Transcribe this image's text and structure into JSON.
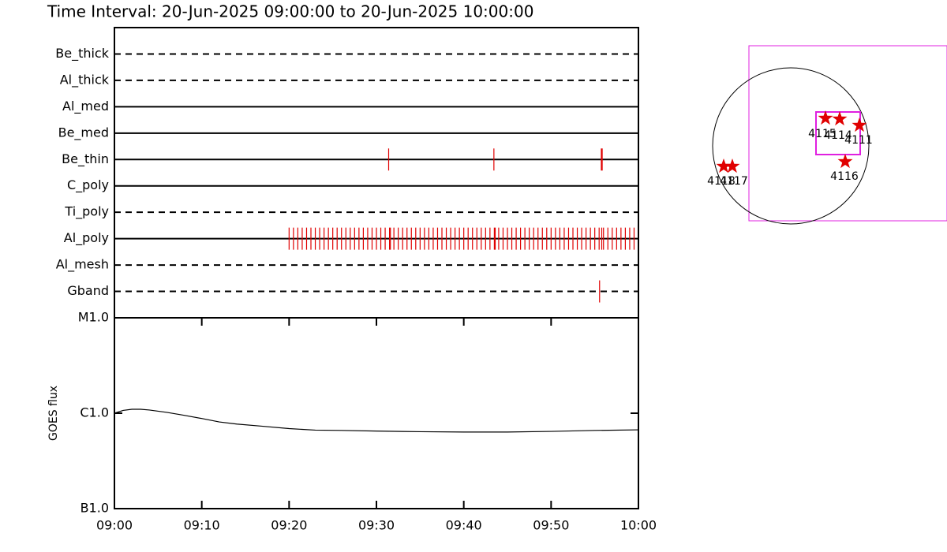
{
  "chart_data": [
    {
      "type": "timeline",
      "title": "Time Interval: 20-Jun-2025 09:00:00 to 20-Jun-2025 10:00:00",
      "xlim": [
        0,
        60
      ],
      "color": "#e00000",
      "rows": [
        {
          "name": "Be_thick",
          "line": "dashed",
          "times": []
        },
        {
          "name": "Al_thick",
          "line": "dashed",
          "times": []
        },
        {
          "name": "Al_med",
          "line": "solid",
          "times": []
        },
        {
          "name": "Be_med",
          "line": "solid",
          "times": []
        },
        {
          "name": "Be_thin",
          "line": "solid",
          "times": [
            31.4,
            43.45,
            55.75,
            55.85
          ]
        },
        {
          "name": "C_poly",
          "line": "solid",
          "times": []
        },
        {
          "name": "Ti_poly",
          "line": "dashed",
          "times": []
        },
        {
          "name": "Al_poly",
          "line": "solid",
          "times": [
            20,
            20.5,
            21,
            21.5,
            22,
            22.5,
            23,
            23.5,
            24,
            24.5,
            25,
            25.5,
            26,
            26.5,
            27,
            27.5,
            28,
            28.5,
            29,
            29.5,
            30,
            30.5,
            31,
            31.5,
            31.6,
            32,
            32.5,
            33,
            33.5,
            34,
            34.5,
            35,
            35.5,
            36,
            36.5,
            37,
            37.5,
            38,
            38.5,
            39,
            39.5,
            40,
            40.5,
            41,
            41.5,
            42,
            42.5,
            43,
            43.5,
            43.6,
            44,
            44.5,
            45,
            45.5,
            46,
            46.5,
            47,
            47.5,
            48,
            48.5,
            49,
            49.5,
            50,
            50.5,
            51,
            51.5,
            52,
            52.5,
            53,
            53.5,
            54,
            54.5,
            55,
            55.5,
            55.8,
            56,
            56.5,
            57,
            57.5,
            58,
            58.5,
            59,
            59.5
          ]
        },
        {
          "name": "Al_mesh",
          "line": "dashed",
          "times": []
        },
        {
          "name": "Gband",
          "line": "dashed",
          "times": [
            55.55
          ]
        }
      ]
    },
    {
      "type": "line",
      "ylabel": "GOES flux",
      "log_scale": true,
      "color": "#000000",
      "xlim": [
        0,
        60
      ],
      "xticks": [
        {
          "value": 0,
          "label": "09:00"
        },
        {
          "value": 10,
          "label": "09:10"
        },
        {
          "value": 20,
          "label": "09:20"
        },
        {
          "value": 30,
          "label": "09:30"
        },
        {
          "value": 40,
          "label": "09:40"
        },
        {
          "value": 50,
          "label": "09:50"
        },
        {
          "value": 60,
          "label": "10:00"
        }
      ],
      "ylim": [
        1e-07,
        1e-05
      ],
      "yticks": [
        {
          "value": 1e-07,
          "label": "B1.0"
        },
        {
          "value": 1e-06,
          "label": "C1.0"
        },
        {
          "value": 1e-05,
          "label": "M1.0"
        }
      ],
      "x": [
        0,
        1,
        2,
        3,
        4,
        6,
        8,
        10,
        12,
        14,
        17,
        20,
        23,
        26,
        30,
        35,
        40,
        45,
        50,
        55,
        60
      ],
      "values": [
        1e-06,
        1.07e-06,
        1.1e-06,
        1.1e-06,
        1.08e-06,
        1.02e-06,
        9.5e-07,
        8.8e-07,
        8.1e-07,
        7.7e-07,
        7.3e-07,
        6.9e-07,
        6.65e-07,
        6.6e-07,
        6.5e-07,
        6.4e-07,
        6.35e-07,
        6.35e-07,
        6.45e-07,
        6.6e-07,
        6.7e-07
      ]
    }
  ],
  "map": {
    "regions": [
      "4115",
      "4114",
      "4111",
      "4116",
      "4118",
      "4117"
    ]
  }
}
